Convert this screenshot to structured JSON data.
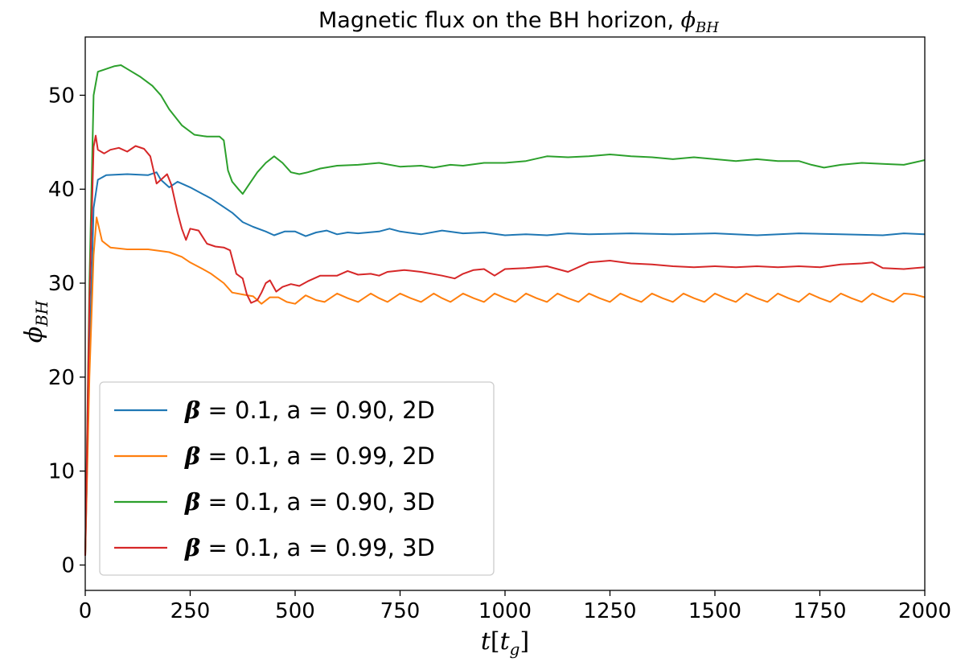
{
  "chart_data": {
    "type": "line",
    "title": "Magnetic flux on the BH horizon, ϕ_BH",
    "title_text": "Magnetic flux on the BH horizon, ",
    "title_symbol": "ϕ",
    "title_sub": "BH",
    "xlabel_main": "t",
    "xlabel_bracket_open": "[",
    "xlabel_var": "t",
    "xlabel_sub": "g",
    "xlabel_bracket_close": "]",
    "ylabel_symbol": "ϕ",
    "ylabel_sub": "BH",
    "xlim": [
      0,
      2000
    ],
    "ylim": [
      -2.7,
      56.2
    ],
    "xticks": [
      0,
      250,
      500,
      750,
      1000,
      1250,
      1500,
      1750,
      2000
    ],
    "yticks": [
      0,
      10,
      20,
      30,
      40,
      50
    ],
    "grid": false,
    "legend_position": "lower-left",
    "series": [
      {
        "name": "β = 0.1, a = 0.90, 2D",
        "legend_beta": "β",
        "legend_rest": " = 0.1, a = 0.90, 2D",
        "color": "#1f77b4",
        "points": [
          [
            0,
            1
          ],
          [
            10,
            22
          ],
          [
            20,
            38
          ],
          [
            30,
            41
          ],
          [
            50,
            41.5
          ],
          [
            100,
            41.6
          ],
          [
            150,
            41.5
          ],
          [
            170,
            41.8
          ],
          [
            180,
            41
          ],
          [
            200,
            40.2
          ],
          [
            220,
            40.8
          ],
          [
            250,
            40.2
          ],
          [
            300,
            39
          ],
          [
            350,
            37.5
          ],
          [
            375,
            36.5
          ],
          [
            400,
            36
          ],
          [
            430,
            35.5
          ],
          [
            450,
            35.1
          ],
          [
            475,
            35.5
          ],
          [
            500,
            35.5
          ],
          [
            525,
            35
          ],
          [
            550,
            35.4
          ],
          [
            575,
            35.6
          ],
          [
            600,
            35.2
          ],
          [
            625,
            35.4
          ],
          [
            650,
            35.3
          ],
          [
            700,
            35.5
          ],
          [
            725,
            35.8
          ],
          [
            750,
            35.5
          ],
          [
            800,
            35.2
          ],
          [
            850,
            35.6
          ],
          [
            900,
            35.3
          ],
          [
            950,
            35.4
          ],
          [
            1000,
            35.1
          ],
          [
            1050,
            35.2
          ],
          [
            1100,
            35.1
          ],
          [
            1150,
            35.3
          ],
          [
            1200,
            35.2
          ],
          [
            1300,
            35.3
          ],
          [
            1400,
            35.2
          ],
          [
            1500,
            35.3
          ],
          [
            1600,
            35.1
          ],
          [
            1700,
            35.3
          ],
          [
            1800,
            35.2
          ],
          [
            1900,
            35.1
          ],
          [
            1950,
            35.3
          ],
          [
            2000,
            35.2
          ]
        ]
      },
      {
        "name": "β = 0.1, a = 0.99, 2D",
        "legend_beta": "β",
        "legend_rest": " = 0.1, a = 0.99, 2D",
        "color": "#ff7f0e",
        "points": [
          [
            0,
            1
          ],
          [
            10,
            20
          ],
          [
            20,
            33
          ],
          [
            27,
            37
          ],
          [
            40,
            34.5
          ],
          [
            60,
            33.8
          ],
          [
            100,
            33.6
          ],
          [
            150,
            33.6
          ],
          [
            200,
            33.3
          ],
          [
            230,
            32.8
          ],
          [
            250,
            32.2
          ],
          [
            280,
            31.5
          ],
          [
            300,
            31
          ],
          [
            330,
            30
          ],
          [
            350,
            29
          ],
          [
            375,
            28.8
          ],
          [
            400,
            28.6
          ],
          [
            420,
            27.8
          ],
          [
            440,
            28.5
          ],
          [
            460,
            28.5
          ],
          [
            480,
            28
          ],
          [
            500,
            27.8
          ],
          [
            525,
            28.7
          ],
          [
            550,
            28.2
          ],
          [
            570,
            28
          ],
          [
            600,
            28.9
          ],
          [
            625,
            28.4
          ],
          [
            650,
            28
          ],
          [
            680,
            28.9
          ],
          [
            700,
            28.4
          ],
          [
            720,
            28
          ],
          [
            750,
            28.9
          ],
          [
            775,
            28.4
          ],
          [
            800,
            28
          ],
          [
            830,
            28.9
          ],
          [
            850,
            28.4
          ],
          [
            870,
            28
          ],
          [
            900,
            28.9
          ],
          [
            925,
            28.4
          ],
          [
            950,
            28
          ],
          [
            975,
            28.9
          ],
          [
            1000,
            28.4
          ],
          [
            1025,
            28
          ],
          [
            1050,
            28.9
          ],
          [
            1075,
            28.4
          ],
          [
            1100,
            28
          ],
          [
            1125,
            28.9
          ],
          [
            1150,
            28.4
          ],
          [
            1175,
            28
          ],
          [
            1200,
            28.9
          ],
          [
            1225,
            28.4
          ],
          [
            1250,
            28
          ],
          [
            1275,
            28.9
          ],
          [
            1300,
            28.4
          ],
          [
            1325,
            28
          ],
          [
            1350,
            28.9
          ],
          [
            1375,
            28.4
          ],
          [
            1400,
            28
          ],
          [
            1425,
            28.9
          ],
          [
            1450,
            28.4
          ],
          [
            1475,
            28
          ],
          [
            1500,
            28.9
          ],
          [
            1525,
            28.4
          ],
          [
            1550,
            28
          ],
          [
            1575,
            28.9
          ],
          [
            1600,
            28.4
          ],
          [
            1625,
            28
          ],
          [
            1650,
            28.9
          ],
          [
            1675,
            28.4
          ],
          [
            1700,
            28
          ],
          [
            1725,
            28.9
          ],
          [
            1750,
            28.4
          ],
          [
            1775,
            28
          ],
          [
            1800,
            28.9
          ],
          [
            1825,
            28.4
          ],
          [
            1850,
            28
          ],
          [
            1875,
            28.9
          ],
          [
            1900,
            28.4
          ],
          [
            1925,
            28
          ],
          [
            1950,
            28.9
          ],
          [
            1975,
            28.8
          ],
          [
            2000,
            28.5
          ]
        ]
      },
      {
        "name": "β = 0.1, a = 0.90, 3D",
        "legend_beta": "β",
        "legend_rest": " = 0.1, a = 0.90, 3D",
        "color": "#2ca02c",
        "points": [
          [
            0,
            1
          ],
          [
            10,
            30
          ],
          [
            20,
            50
          ],
          [
            30,
            52.5
          ],
          [
            50,
            52.8
          ],
          [
            70,
            53.1
          ],
          [
            85,
            53.2
          ],
          [
            100,
            52.8
          ],
          [
            130,
            52
          ],
          [
            160,
            51
          ],
          [
            180,
            50
          ],
          [
            200,
            48.5
          ],
          [
            230,
            46.8
          ],
          [
            260,
            45.8
          ],
          [
            290,
            45.6
          ],
          [
            320,
            45.6
          ],
          [
            330,
            45.2
          ],
          [
            340,
            42
          ],
          [
            350,
            40.8
          ],
          [
            365,
            40
          ],
          [
            375,
            39.5
          ],
          [
            390,
            40.5
          ],
          [
            410,
            41.8
          ],
          [
            430,
            42.8
          ],
          [
            450,
            43.5
          ],
          [
            470,
            42.8
          ],
          [
            490,
            41.8
          ],
          [
            510,
            41.6
          ],
          [
            530,
            41.8
          ],
          [
            560,
            42.2
          ],
          [
            600,
            42.5
          ],
          [
            650,
            42.6
          ],
          [
            700,
            42.8
          ],
          [
            750,
            42.4
          ],
          [
            800,
            42.5
          ],
          [
            830,
            42.3
          ],
          [
            870,
            42.6
          ],
          [
            900,
            42.5
          ],
          [
            950,
            42.8
          ],
          [
            1000,
            42.8
          ],
          [
            1050,
            43
          ],
          [
            1100,
            43.5
          ],
          [
            1150,
            43.4
          ],
          [
            1200,
            43.5
          ],
          [
            1250,
            43.7
          ],
          [
            1300,
            43.5
          ],
          [
            1350,
            43.4
          ],
          [
            1400,
            43.2
          ],
          [
            1450,
            43.4
          ],
          [
            1500,
            43.2
          ],
          [
            1550,
            43
          ],
          [
            1600,
            43.2
          ],
          [
            1650,
            43
          ],
          [
            1700,
            43
          ],
          [
            1730,
            42.6
          ],
          [
            1760,
            42.3
          ],
          [
            1800,
            42.6
          ],
          [
            1850,
            42.8
          ],
          [
            1900,
            42.7
          ],
          [
            1950,
            42.6
          ],
          [
            1980,
            42.9
          ],
          [
            2000,
            43.1
          ]
        ]
      },
      {
        "name": "β = 0.1, a = 0.99, 3D",
        "legend_beta": "β",
        "legend_rest": " = 0.1, a = 0.99, 3D",
        "color": "#d62728",
        "points": [
          [
            0,
            1
          ],
          [
            10,
            28
          ],
          [
            20,
            44.5
          ],
          [
            25,
            45.7
          ],
          [
            30,
            44.2
          ],
          [
            45,
            43.8
          ],
          [
            60,
            44.2
          ],
          [
            80,
            44.4
          ],
          [
            100,
            44
          ],
          [
            120,
            44.6
          ],
          [
            140,
            44.3
          ],
          [
            155,
            43.5
          ],
          [
            170,
            40.6
          ],
          [
            185,
            41.2
          ],
          [
            195,
            41.6
          ],
          [
            205,
            40.5
          ],
          [
            220,
            37.5
          ],
          [
            230,
            35.8
          ],
          [
            240,
            34.6
          ],
          [
            250,
            35.8
          ],
          [
            270,
            35.6
          ],
          [
            290,
            34.2
          ],
          [
            310,
            33.9
          ],
          [
            330,
            33.8
          ],
          [
            345,
            33.5
          ],
          [
            360,
            31
          ],
          [
            375,
            30.5
          ],
          [
            385,
            28.8
          ],
          [
            395,
            27.9
          ],
          [
            410,
            28.2
          ],
          [
            420,
            29
          ],
          [
            430,
            30
          ],
          [
            440,
            30.3
          ],
          [
            455,
            29.1
          ],
          [
            470,
            29.6
          ],
          [
            490,
            29.9
          ],
          [
            510,
            29.7
          ],
          [
            530,
            30.2
          ],
          [
            560,
            30.8
          ],
          [
            600,
            30.8
          ],
          [
            625,
            31.3
          ],
          [
            650,
            30.9
          ],
          [
            680,
            31
          ],
          [
            700,
            30.8
          ],
          [
            720,
            31.2
          ],
          [
            760,
            31.4
          ],
          [
            800,
            31.2
          ],
          [
            850,
            30.8
          ],
          [
            880,
            30.5
          ],
          [
            900,
            31
          ],
          [
            925,
            31.4
          ],
          [
            950,
            31.5
          ],
          [
            975,
            30.8
          ],
          [
            1000,
            31.5
          ],
          [
            1050,
            31.6
          ],
          [
            1100,
            31.8
          ],
          [
            1150,
            31.2
          ],
          [
            1200,
            32.2
          ],
          [
            1250,
            32.4
          ],
          [
            1300,
            32.1
          ],
          [
            1350,
            32
          ],
          [
            1400,
            31.8
          ],
          [
            1450,
            31.7
          ],
          [
            1500,
            31.8
          ],
          [
            1550,
            31.7
          ],
          [
            1600,
            31.8
          ],
          [
            1650,
            31.7
          ],
          [
            1700,
            31.8
          ],
          [
            1750,
            31.7
          ],
          [
            1800,
            32
          ],
          [
            1850,
            32.1
          ],
          [
            1875,
            32.2
          ],
          [
            1900,
            31.6
          ],
          [
            1950,
            31.5
          ],
          [
            2000,
            31.7
          ]
        ]
      }
    ]
  }
}
